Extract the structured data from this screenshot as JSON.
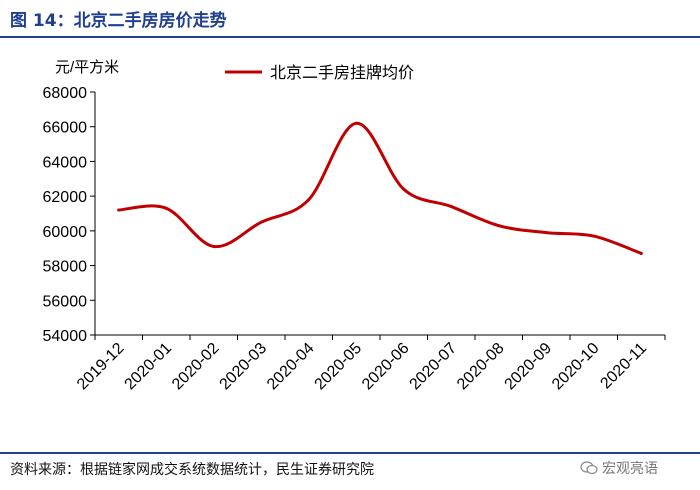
{
  "header": {
    "title": "图 14：北京二手房房价走势"
  },
  "footer": {
    "source": "资料来源：根据链家网成交系统数据统计，民生证券研究院",
    "watermark": "宏观亮语"
  },
  "colors": {
    "title": "#1f3f8f",
    "line": "#c00000",
    "axis": "#000000"
  },
  "chart_data": {
    "type": "line",
    "ylabel": "元/平方米",
    "ylim": [
      54000,
      68000
    ],
    "yticks": [
      54000,
      56000,
      58000,
      60000,
      62000,
      64000,
      66000,
      68000
    ],
    "categories": [
      "2019-12",
      "2020-01",
      "2020-02",
      "2020-03",
      "2020-04",
      "2020-05",
      "2020-06",
      "2020-07",
      "2020-08",
      "2020-09",
      "2020-10",
      "2020-11"
    ],
    "legend_position": "top",
    "series": [
      {
        "name": "北京二手房挂牌均价",
        "color": "#c00000",
        "values": [
          61200,
          61300,
          59100,
          60500,
          61800,
          66200,
          62400,
          61400,
          60300,
          59900,
          59700,
          58700
        ]
      }
    ]
  }
}
